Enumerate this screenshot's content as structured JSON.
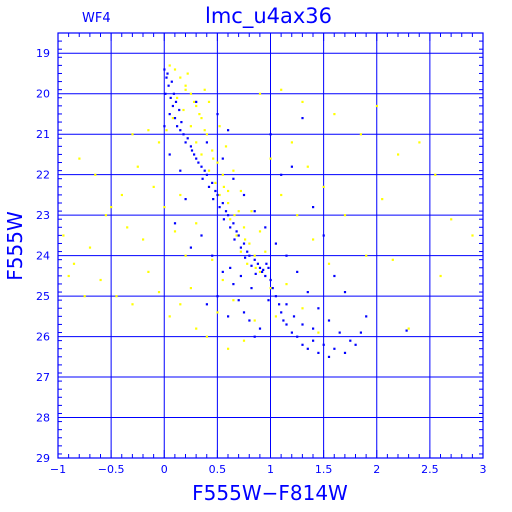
{
  "chart_data": {
    "type": "scatter",
    "title": "lmc_u4ax36",
    "subtitle": "WF4",
    "xlabel": "F555W−F814W",
    "ylabel": "F555W",
    "xlim": [
      -1,
      3
    ],
    "ylim": [
      29,
      18.5
    ],
    "y_inverted": true,
    "grid": true,
    "x_ticks": [
      -1,
      -0.5,
      0,
      0.5,
      1,
      1.5,
      2,
      2.5,
      3
    ],
    "x_tick_labels": [
      "−1",
      "−0.5",
      "0",
      "0.5",
      "1",
      "1.5",
      "2",
      "2.5",
      "3"
    ],
    "y_ticks": [
      19,
      20,
      21,
      22,
      23,
      24,
      25,
      26,
      27,
      28,
      29
    ],
    "y_tick_labels": [
      "19",
      "20",
      "21",
      "22",
      "23",
      "24",
      "25",
      "26",
      "27",
      "28",
      "29"
    ],
    "colors": {
      "axis": "#0000ff",
      "series_blue": "#0000ff",
      "series_yellow": "#ffff00"
    },
    "series": [
      {
        "color": "#ffff00",
        "points": [
          [
            0.05,
            19.3
          ],
          [
            0.1,
            19.4
          ],
          [
            0.15,
            19.6
          ],
          [
            0.2,
            19.9
          ],
          [
            0.25,
            20.0
          ],
          [
            0.12,
            20.1
          ],
          [
            0.3,
            20.3
          ],
          [
            0.18,
            20.4
          ],
          [
            0.35,
            20.6
          ],
          [
            0.25,
            20.8
          ],
          [
            0.4,
            21.0
          ],
          [
            0.3,
            21.2
          ],
          [
            0.45,
            21.4
          ],
          [
            0.35,
            21.5
          ],
          [
            0.5,
            21.7
          ],
          [
            0.42,
            21.9
          ],
          [
            0.55,
            22.0
          ],
          [
            0.48,
            22.2
          ],
          [
            0.6,
            22.4
          ],
          [
            0.52,
            22.5
          ],
          [
            0.6,
            22.7
          ],
          [
            0.7,
            22.9
          ],
          [
            0.62,
            23.1
          ],
          [
            0.75,
            23.3
          ],
          [
            0.68,
            23.5
          ],
          [
            0.8,
            23.7
          ],
          [
            0.72,
            23.9
          ],
          [
            0.85,
            24.0
          ],
          [
            0.78,
            24.2
          ],
          [
            0.9,
            24.4
          ],
          [
            0.2,
            19.8
          ],
          [
            0.28,
            20.2
          ],
          [
            0.38,
            20.9
          ],
          [
            0.46,
            21.6
          ],
          [
            0.56,
            22.3
          ],
          [
            0.66,
            23.0
          ],
          [
            0.76,
            23.6
          ],
          [
            0.86,
            24.3
          ],
          [
            0.22,
            19.5
          ],
          [
            0.33,
            20.5
          ],
          [
            0.08,
            20.6
          ],
          [
            0.02,
            20.9
          ],
          [
            -0.05,
            21.2
          ],
          [
            0.9,
            20.0
          ],
          [
            1.1,
            19.9
          ],
          [
            1.3,
            20.2
          ],
          [
            1.6,
            20.5
          ],
          [
            1.85,
            21.0
          ],
          [
            2.0,
            20.3
          ],
          [
            2.2,
            21.5
          ],
          [
            2.4,
            21.2
          ],
          [
            2.55,
            22.0
          ],
          [
            2.7,
            23.1
          ],
          [
            2.9,
            23.5
          ],
          [
            2.6,
            24.5
          ],
          [
            2.3,
            25.8
          ],
          [
            1.9,
            24.0
          ],
          [
            1.7,
            23.0
          ],
          [
            1.5,
            22.3
          ],
          [
            1.35,
            21.8
          ],
          [
            1.2,
            21.2
          ],
          [
            1.0,
            21.6
          ],
          [
            -0.1,
            22.3
          ],
          [
            -0.25,
            21.8
          ],
          [
            -0.4,
            22.5
          ],
          [
            -0.55,
            23.0
          ],
          [
            -0.7,
            23.8
          ],
          [
            -0.85,
            24.2
          ],
          [
            -0.6,
            24.6
          ],
          [
            -0.45,
            25.0
          ],
          [
            -0.3,
            25.2
          ],
          [
            -0.15,
            24.4
          ],
          [
            -0.2,
            23.6
          ],
          [
            -0.35,
            23.3
          ],
          [
            -0.5,
            22.8
          ],
          [
            -0.65,
            22.0
          ],
          [
            -0.8,
            21.6
          ],
          [
            -0.3,
            21.0
          ],
          [
            -0.15,
            20.9
          ],
          [
            -0.05,
            24.9
          ],
          [
            0.05,
            25.5
          ],
          [
            0.15,
            25.2
          ],
          [
            0.25,
            24.8
          ],
          [
            0.3,
            25.8
          ],
          [
            0.4,
            26.0
          ],
          [
            0.2,
            24.0
          ],
          [
            0.1,
            23.4
          ],
          [
            0.0,
            22.8
          ],
          [
            0.15,
            22.5
          ],
          [
            0.3,
            23.2
          ],
          [
            0.45,
            24.1
          ],
          [
            0.55,
            24.6
          ],
          [
            0.65,
            25.1
          ],
          [
            1.1,
            22.5
          ],
          [
            1.25,
            23.0
          ],
          [
            1.4,
            23.6
          ],
          [
            1.55,
            24.2
          ],
          [
            1.15,
            24.7
          ],
          [
            1.3,
            25.3
          ],
          [
            1.45,
            25.9
          ],
          [
            -0.95,
            23.5
          ],
          [
            -0.9,
            24.5
          ],
          [
            -0.75,
            25.0
          ],
          [
            0.38,
            19.9
          ],
          [
            0.42,
            20.2
          ],
          [
            0.52,
            20.8
          ],
          [
            0.58,
            21.3
          ],
          [
            0.65,
            21.9
          ],
          [
            0.72,
            22.4
          ],
          [
            0.82,
            22.9
          ],
          [
            0.9,
            23.4
          ],
          [
            0.95,
            23.9
          ],
          [
            1.0,
            24.8
          ],
          [
            1.05,
            25.5
          ],
          [
            0.85,
            25.6
          ],
          [
            0.75,
            26.1
          ],
          [
            0.6,
            26.3
          ],
          [
            0.5,
            25.4
          ],
          [
            2.05,
            22.6
          ],
          [
            2.15,
            24.1
          ]
        ]
      },
      {
        "color": "#0000ff",
        "points": [
          [
            0.0,
            19.4
          ],
          [
            0.02,
            19.6
          ],
          [
            0.04,
            19.8
          ],
          [
            0.01,
            20.0
          ],
          [
            0.06,
            20.1
          ],
          [
            0.08,
            20.3
          ],
          [
            0.05,
            20.5
          ],
          [
            0.1,
            20.6
          ],
          [
            0.12,
            20.8
          ],
          [
            0.15,
            20.9
          ],
          [
            0.18,
            21.0
          ],
          [
            0.2,
            21.2
          ],
          [
            0.25,
            21.3
          ],
          [
            0.28,
            21.5
          ],
          [
            0.3,
            21.6
          ],
          [
            0.35,
            21.8
          ],
          [
            0.38,
            21.9
          ],
          [
            0.4,
            22.0
          ],
          [
            0.45,
            22.2
          ],
          [
            0.48,
            22.4
          ],
          [
            0.5,
            22.5
          ],
          [
            0.55,
            22.7
          ],
          [
            0.58,
            22.9
          ],
          [
            0.6,
            23.0
          ],
          [
            0.65,
            23.2
          ],
          [
            0.68,
            23.4
          ],
          [
            0.7,
            23.5
          ],
          [
            0.75,
            23.7
          ],
          [
            0.78,
            23.9
          ],
          [
            0.8,
            24.0
          ],
          [
            0.85,
            24.1
          ],
          [
            0.88,
            24.2
          ],
          [
            0.9,
            24.3
          ],
          [
            0.92,
            24.4
          ],
          [
            0.95,
            24.5
          ],
          [
            0.98,
            24.3
          ],
          [
            1.0,
            24.6
          ],
          [
            1.02,
            24.8
          ],
          [
            0.96,
            24.2
          ],
          [
            0.93,
            24.35
          ],
          [
            1.05,
            25.0
          ],
          [
            1.08,
            25.2
          ],
          [
            1.1,
            25.4
          ],
          [
            1.12,
            25.6
          ],
          [
            1.15,
            25.7
          ],
          [
            1.2,
            25.9
          ],
          [
            1.25,
            26.0
          ],
          [
            1.3,
            26.2
          ],
          [
            1.35,
            26.3
          ],
          [
            1.4,
            26.1
          ],
          [
            1.45,
            26.4
          ],
          [
            1.5,
            26.2
          ],
          [
            1.55,
            26.5
          ],
          [
            1.6,
            26.3
          ],
          [
            1.7,
            26.4
          ],
          [
            1.8,
            26.2
          ],
          [
            0.9,
            25.8
          ],
          [
            0.85,
            26.0
          ],
          [
            0.8,
            25.6
          ],
          [
            0.75,
            25.4
          ],
          [
            0.7,
            25.1
          ],
          [
            0.65,
            24.7
          ],
          [
            0.62,
            24.3
          ],
          [
            0.72,
            24.5
          ],
          [
            0.82,
            24.8
          ],
          [
            0.98,
            25.1
          ],
          [
            1.15,
            25.2
          ],
          [
            1.22,
            25.5
          ],
          [
            1.3,
            25.7
          ],
          [
            1.4,
            25.8
          ],
          [
            0.03,
            19.5
          ],
          [
            0.07,
            19.7
          ],
          [
            0.09,
            20.0
          ],
          [
            0.11,
            20.2
          ],
          [
            0.14,
            20.4
          ],
          [
            0.16,
            20.7
          ],
          [
            0.22,
            21.1
          ],
          [
            0.26,
            21.4
          ],
          [
            0.32,
            21.7
          ],
          [
            0.36,
            22.1
          ],
          [
            0.42,
            22.3
          ],
          [
            0.46,
            22.6
          ],
          [
            0.52,
            22.8
          ],
          [
            0.56,
            23.1
          ],
          [
            0.62,
            23.3
          ],
          [
            0.66,
            23.6
          ],
          [
            0.72,
            23.8
          ],
          [
            0.76,
            24.05
          ],
          [
            0.82,
            24.25
          ],
          [
            0.86,
            24.45
          ],
          [
            0.4,
            21.2
          ],
          [
            0.55,
            21.6
          ],
          [
            0.65,
            22.1
          ],
          [
            0.75,
            22.5
          ],
          [
            0.85,
            22.9
          ],
          [
            1.0,
            21.0
          ],
          [
            1.1,
            22.0
          ],
          [
            0.5,
            20.5
          ],
          [
            0.6,
            20.9
          ],
          [
            0.3,
            20.2
          ],
          [
            0.95,
            23.3
          ],
          [
            1.05,
            23.7
          ],
          [
            1.15,
            24.0
          ],
          [
            1.25,
            24.4
          ],
          [
            1.35,
            24.9
          ],
          [
            1.45,
            25.3
          ],
          [
            1.55,
            25.6
          ],
          [
            1.65,
            25.9
          ],
          [
            1.75,
            26.1
          ],
          [
            1.85,
            25.9
          ],
          [
            0.35,
            23.5
          ],
          [
            0.45,
            24.0
          ],
          [
            0.55,
            24.4
          ],
          [
            0.5,
            25.0
          ],
          [
            0.6,
            25.5
          ],
          [
            0.4,
            25.2
          ],
          [
            1.3,
            20.6
          ],
          [
            1.2,
            21.8
          ],
          [
            1.4,
            22.8
          ],
          [
            1.6,
            24.5
          ],
          [
            0.2,
            22.6
          ],
          [
            0.1,
            23.2
          ],
          [
            0.25,
            23.8
          ],
          [
            1.5,
            23.5
          ],
          [
            1.7,
            24.9
          ],
          [
            2.28,
            25.85
          ],
          [
            1.9,
            25.5
          ],
          [
            0.0,
            20.8
          ],
          [
            0.05,
            21.5
          ],
          [
            0.15,
            21.9
          ]
        ]
      }
    ]
  }
}
